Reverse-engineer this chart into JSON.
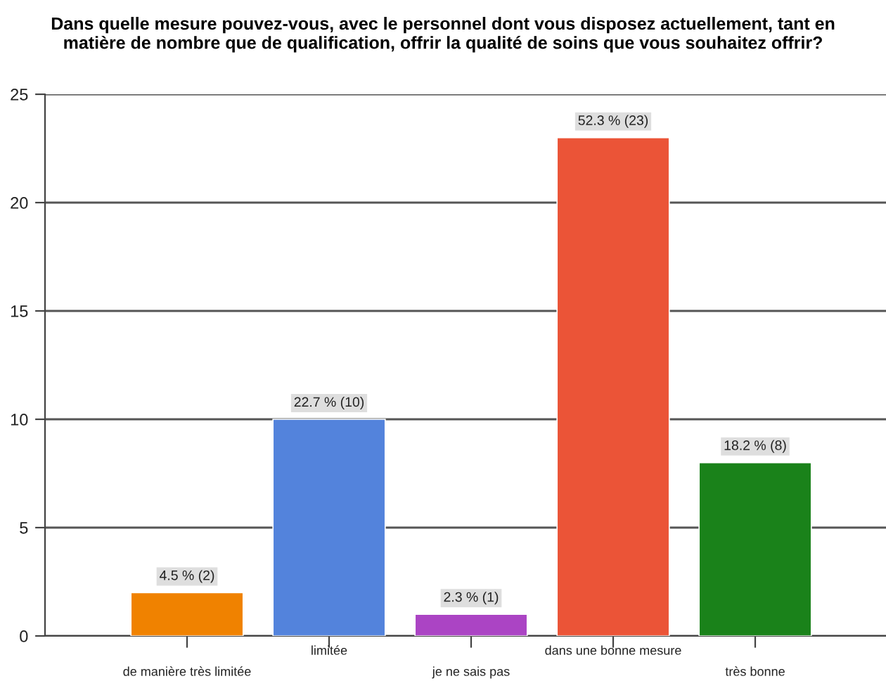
{
  "chart_data": {
    "type": "bar",
    "title": "Dans quelle mesure pouvez-vous, avec le personnel dont vous disposez actuellement, tant en\nmatière de nombre que de qualification, offrir la qualité de soins que vous souhaitez offrir?",
    "categories": [
      "de manière très limitée",
      "limitée",
      "je ne sais pas",
      "dans une bonne mesure",
      "très bonne"
    ],
    "values": [
      2,
      10,
      1,
      23,
      8
    ],
    "colors": [
      "#f08200",
      "#5383dc",
      "#ab44c4",
      "#eb5437",
      "#1a821a"
    ],
    "value_labels": [
      "4.5 % (2)",
      "22.7 % (10)",
      "2.3 % (1)",
      "52.3 % (23)",
      "18.2 % (8)"
    ],
    "ylim": [
      0,
      25
    ],
    "yticks": [
      0,
      5,
      10,
      15,
      20,
      25
    ],
    "grid": "y",
    "legend": false
  }
}
